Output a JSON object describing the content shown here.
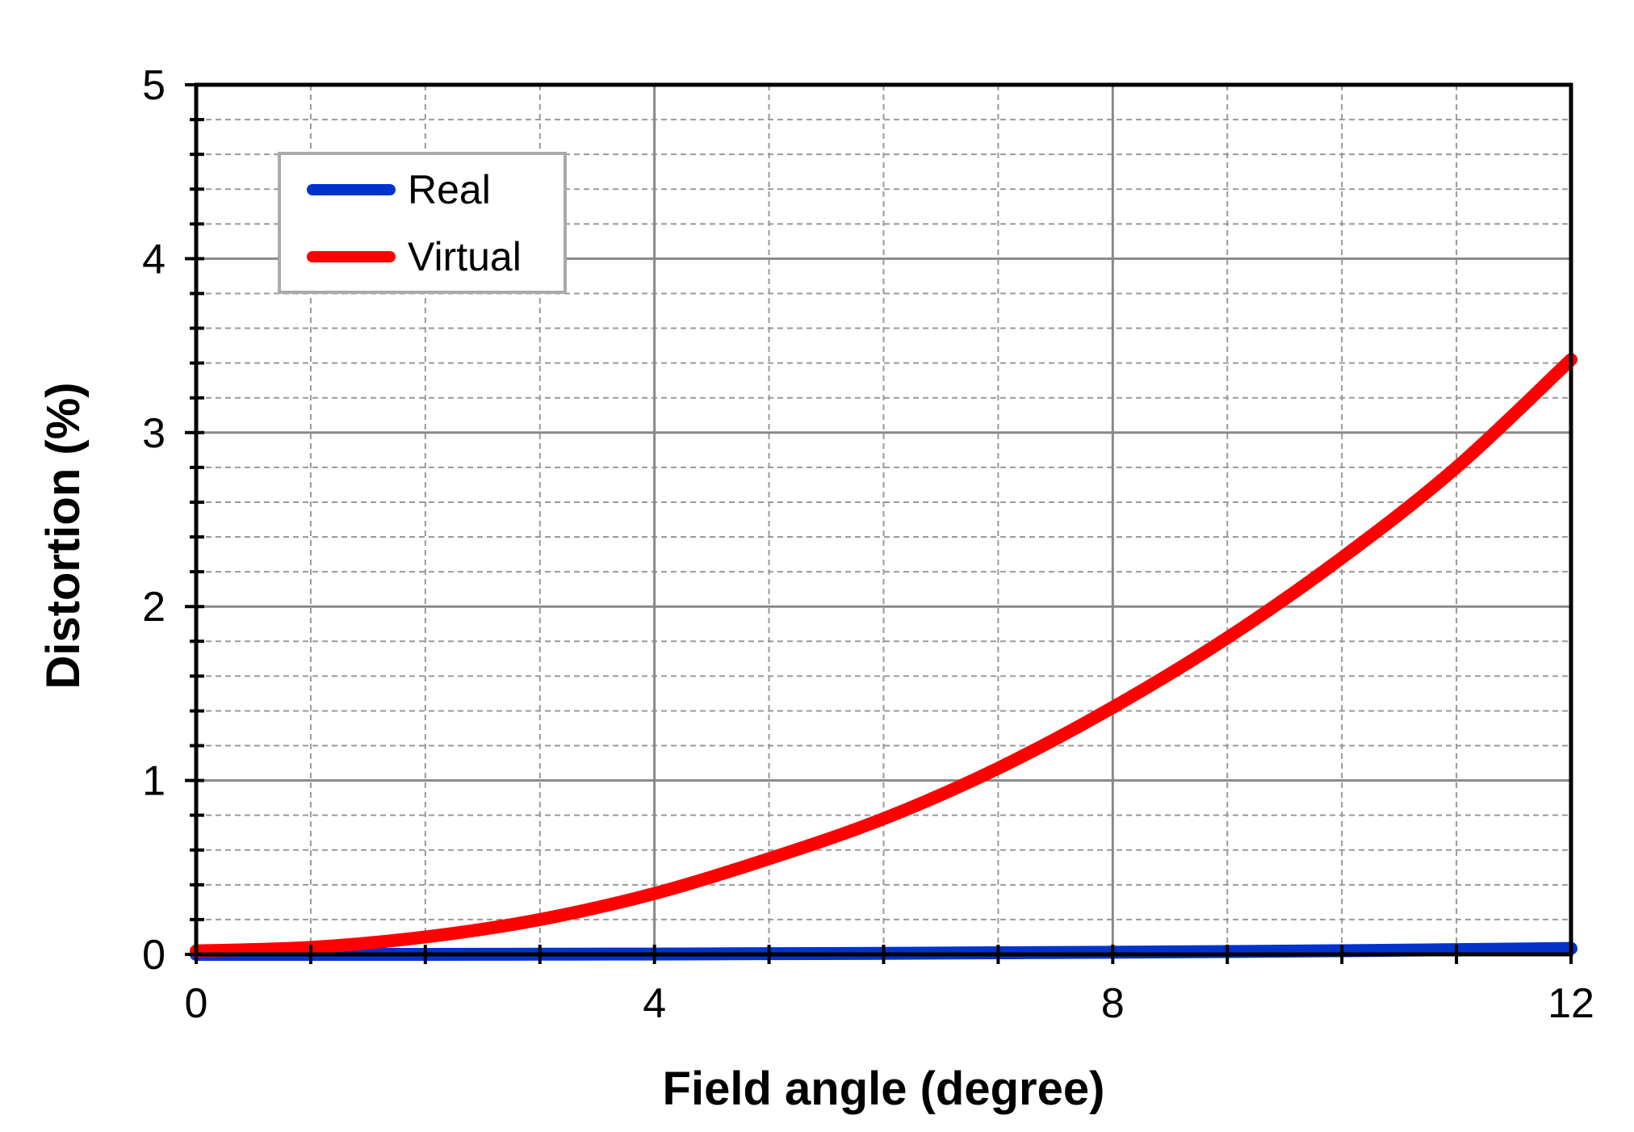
{
  "chart_data": {
    "type": "line",
    "title": "",
    "xlabel": "Field angle (degree)",
    "ylabel": "Distortion (%)",
    "xlim": [
      0,
      12
    ],
    "ylim": [
      0,
      5
    ],
    "x_ticks": [
      0,
      4,
      8,
      12
    ],
    "x_tick_labels": [
      "0",
      "4",
      "8",
      "12"
    ],
    "x_minor_step": 1,
    "y_ticks": [
      0,
      1,
      2,
      3,
      4,
      5
    ],
    "y_tick_labels": [
      "0",
      "1",
      "2",
      "3",
      "4",
      "5"
    ],
    "y_minor_step": 0.2,
    "grid": true,
    "legend_position": "top-left",
    "series": [
      {
        "name": "Real",
        "color": "#0033cc",
        "x": [
          0,
          1,
          2,
          3,
          4,
          5,
          6,
          7,
          8,
          9,
          10,
          11,
          12
        ],
        "y": [
          0.0,
          0.0,
          0.0,
          0.001,
          0.002,
          0.004,
          0.006,
          0.009,
          0.012,
          0.016,
          0.021,
          0.027,
          0.034
        ]
      },
      {
        "name": "Virtual",
        "color": "#ff0000",
        "x": [
          0,
          1,
          2,
          3,
          4,
          5,
          6,
          7,
          8,
          9,
          10,
          11,
          12
        ],
        "y": [
          0.02,
          0.04,
          0.1,
          0.2,
          0.35,
          0.55,
          0.78,
          1.07,
          1.42,
          1.82,
          2.28,
          2.8,
          3.42
        ]
      }
    ]
  }
}
